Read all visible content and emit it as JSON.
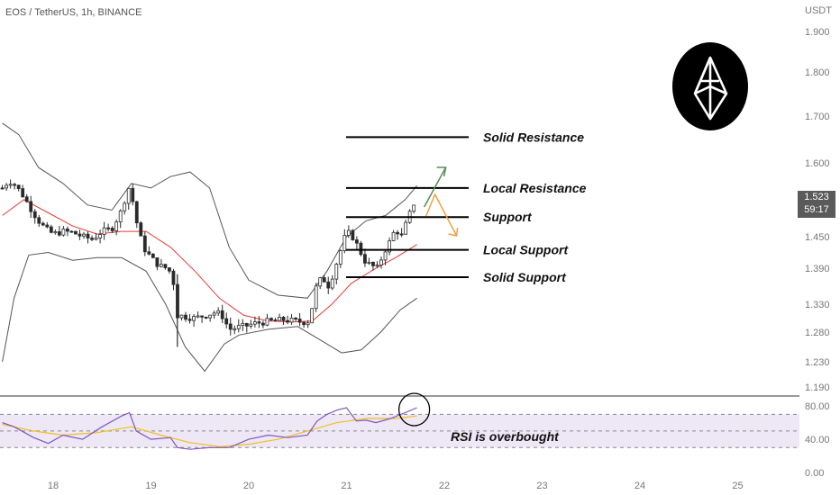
{
  "header": {
    "title": "EOS / TetherUS, 1h, BINANCE"
  },
  "price_axis": {
    "currency": "USDT",
    "ticks": [
      {
        "label": "1.900",
        "value": 1.9
      },
      {
        "label": "1.800",
        "value": 1.8
      },
      {
        "label": "1.700",
        "value": 1.7
      },
      {
        "label": "1.600",
        "value": 1.6
      },
      {
        "label": "1.450",
        "value": 1.45
      },
      {
        "label": "1.390",
        "value": 1.39
      },
      {
        "label": "1.330",
        "value": 1.33
      },
      {
        "label": "1.280",
        "value": 1.28
      },
      {
        "label": "1.230",
        "value": 1.23
      },
      {
        "label": "1.190",
        "value": 1.19
      }
    ],
    "current_price": "1.523",
    "countdown": "59:17"
  },
  "rsi_axis": {
    "ticks": [
      "80.00",
      "40.00",
      "0.00"
    ]
  },
  "time_axis": {
    "labels": [
      "18",
      "19",
      "20",
      "21",
      "22",
      "23",
      "24",
      "25"
    ]
  },
  "annotations": {
    "levels": [
      {
        "label": "Solid Resistance",
        "price": 1.655
      },
      {
        "label": "Local Resistance",
        "price": 1.545
      },
      {
        "label": "Support",
        "price": 1.487
      },
      {
        "label": "Local Support",
        "price": 1.425
      },
      {
        "label": "Solid Support",
        "price": 1.375
      }
    ],
    "rsi_note": "RSI is overbought"
  },
  "colors": {
    "bull": "#2b2b2b",
    "bear": "#2b2b2b",
    "sma": "#e53935",
    "bollinger": "#555555",
    "rsi_line": "#7e57c2",
    "rsi_ma": "#f0c020",
    "rsi_band": "#ede7f6",
    "arrow_up": "#5a8a5a",
    "arrow_down": "#f0a040"
  },
  "chart_data": {
    "type": "candlestick",
    "symbol": "EOS / TetherUS",
    "interval": "1h",
    "exchange": "BINANCE",
    "y_unit": "USDT",
    "x_axis_days": [
      "18",
      "19",
      "20",
      "21",
      "22",
      "23",
      "24",
      "25"
    ],
    "last_price": 1.523,
    "close_path": [
      [
        17.48,
        1.545
      ],
      [
        17.55,
        1.56
      ],
      [
        17.62,
        1.55
      ],
      [
        17.7,
        1.525
      ],
      [
        17.78,
        1.5
      ],
      [
        17.85,
        1.48
      ],
      [
        17.92,
        1.465
      ],
      [
        18.0,
        1.455
      ],
      [
        18.1,
        1.46
      ],
      [
        18.2,
        1.458
      ],
      [
        18.3,
        1.45
      ],
      [
        18.4,
        1.445
      ],
      [
        18.5,
        1.46
      ],
      [
        18.6,
        1.465
      ],
      [
        18.7,
        1.5
      ],
      [
        18.78,
        1.55
      ],
      [
        18.85,
        1.48
      ],
      [
        18.92,
        1.43
      ],
      [
        19.0,
        1.41
      ],
      [
        19.08,
        1.395
      ],
      [
        19.16,
        1.39
      ],
      [
        19.22,
        1.38
      ],
      [
        19.27,
        1.31
      ],
      [
        19.35,
        1.308
      ],
      [
        19.45,
        1.305
      ],
      [
        19.55,
        1.31
      ],
      [
        19.65,
        1.315
      ],
      [
        19.72,
        1.312
      ],
      [
        19.8,
        1.285
      ],
      [
        19.88,
        1.288
      ],
      [
        19.95,
        1.29
      ],
      [
        20.05,
        1.295
      ],
      [
        20.15,
        1.298
      ],
      [
        20.25,
        1.3
      ],
      [
        20.35,
        1.302
      ],
      [
        20.45,
        1.3
      ],
      [
        20.55,
        1.298
      ],
      [
        20.62,
        1.3
      ],
      [
        20.68,
        1.355
      ],
      [
        20.75,
        1.375
      ],
      [
        20.82,
        1.36
      ],
      [
        20.88,
        1.39
      ],
      [
        20.95,
        1.43
      ],
      [
        21.0,
        1.46
      ],
      [
        21.06,
        1.45
      ],
      [
        21.12,
        1.43
      ],
      [
        21.18,
        1.405
      ],
      [
        21.25,
        1.395
      ],
      [
        21.32,
        1.39
      ],
      [
        21.38,
        1.42
      ],
      [
        21.44,
        1.44
      ],
      [
        21.5,
        1.465
      ],
      [
        21.56,
        1.45
      ],
      [
        21.62,
        1.48
      ],
      [
        21.68,
        1.51
      ],
      [
        21.72,
        1.523
      ]
    ],
    "sma": [
      [
        17.48,
        1.49
      ],
      [
        17.7,
        1.52
      ],
      [
        17.95,
        1.495
      ],
      [
        18.2,
        1.47
      ],
      [
        18.45,
        1.455
      ],
      [
        18.7,
        1.46
      ],
      [
        18.95,
        1.46
      ],
      [
        19.2,
        1.43
      ],
      [
        19.45,
        1.385
      ],
      [
        19.7,
        1.34
      ],
      [
        19.95,
        1.31
      ],
      [
        20.2,
        1.3
      ],
      [
        20.45,
        1.298
      ],
      [
        20.65,
        1.3
      ],
      [
        20.85,
        1.33
      ],
      [
        21.05,
        1.365
      ],
      [
        21.3,
        1.39
      ],
      [
        21.5,
        1.41
      ],
      [
        21.72,
        1.435
      ]
    ],
    "bollinger_upper": [
      [
        17.48,
        1.685
      ],
      [
        17.65,
        1.66
      ],
      [
        17.85,
        1.59
      ],
      [
        18.1,
        1.555
      ],
      [
        18.35,
        1.51
      ],
      [
        18.6,
        1.5
      ],
      [
        18.8,
        1.555
      ],
      [
        19.0,
        1.545
      ],
      [
        19.2,
        1.57
      ],
      [
        19.4,
        1.58
      ],
      [
        19.6,
        1.545
      ],
      [
        19.8,
        1.43
      ],
      [
        20.0,
        1.37
      ],
      [
        20.3,
        1.345
      ],
      [
        20.6,
        1.34
      ],
      [
        20.8,
        1.385
      ],
      [
        21.0,
        1.45
      ],
      [
        21.2,
        1.48
      ],
      [
        21.4,
        1.49
      ],
      [
        21.6,
        1.52
      ],
      [
        21.72,
        1.55
      ]
    ],
    "bollinger_lower": [
      [
        17.48,
        1.23
      ],
      [
        17.6,
        1.34
      ],
      [
        17.75,
        1.415
      ],
      [
        17.95,
        1.42
      ],
      [
        18.2,
        1.405
      ],
      [
        18.45,
        1.41
      ],
      [
        18.7,
        1.41
      ],
      [
        18.95,
        1.385
      ],
      [
        19.15,
        1.33
      ],
      [
        19.35,
        1.255
      ],
      [
        19.55,
        1.215
      ],
      [
        19.75,
        1.26
      ],
      [
        19.9,
        1.275
      ],
      [
        20.2,
        1.285
      ],
      [
        20.5,
        1.29
      ],
      [
        20.75,
        1.265
      ],
      [
        20.95,
        1.245
      ],
      [
        21.15,
        1.25
      ],
      [
        21.35,
        1.28
      ],
      [
        21.55,
        1.32
      ],
      [
        21.72,
        1.34
      ]
    ],
    "rsi": {
      "levels": [
        70,
        50,
        30
      ],
      "overbought_note": "RSI is overbought",
      "values": [
        [
          17.48,
          60
        ],
        [
          17.6,
          55
        ],
        [
          17.8,
          42
        ],
        [
          17.95,
          35
        ],
        [
          18.1,
          45
        ],
        [
          18.3,
          40
        ],
        [
          18.5,
          55
        ],
        [
          18.7,
          68
        ],
        [
          18.78,
          72
        ],
        [
          18.85,
          50
        ],
        [
          19.0,
          40
        ],
        [
          19.2,
          42
        ],
        [
          19.27,
          30
        ],
        [
          19.4,
          28
        ],
        [
          19.6,
          30
        ],
        [
          19.8,
          30
        ],
        [
          20.0,
          40
        ],
        [
          20.2,
          45
        ],
        [
          20.4,
          42
        ],
        [
          20.6,
          45
        ],
        [
          20.7,
          62
        ],
        [
          20.8,
          70
        ],
        [
          20.9,
          75
        ],
        [
          21.0,
          78
        ],
        [
          21.1,
          62
        ],
        [
          21.2,
          63
        ],
        [
          21.3,
          60
        ],
        [
          21.45,
          65
        ],
        [
          21.6,
          72
        ],
        [
          21.72,
          78
        ]
      ],
      "ma": [
        [
          17.48,
          58
        ],
        [
          17.8,
          50
        ],
        [
          18.1,
          45
        ],
        [
          18.45,
          48
        ],
        [
          18.8,
          55
        ],
        [
          19.1,
          45
        ],
        [
          19.4,
          36
        ],
        [
          19.7,
          31
        ],
        [
          20.0,
          34
        ],
        [
          20.3,
          40
        ],
        [
          20.6,
          50
        ],
        [
          20.9,
          60
        ],
        [
          21.2,
          65
        ],
        [
          21.5,
          65
        ],
        [
          21.72,
          68
        ]
      ]
    }
  }
}
